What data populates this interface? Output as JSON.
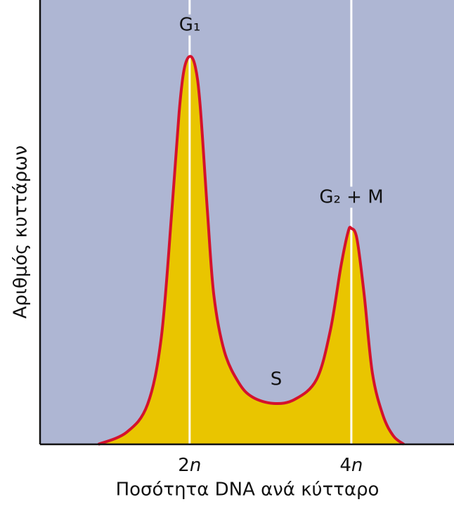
{
  "chart_data": {
    "type": "area",
    "x_label": "Ποσότητα DNA ανά κύτταρο",
    "y_label": "Αριθμός κυττάρων",
    "x": [
      0.87,
      1.22,
      1.48,
      1.65,
      1.78,
      1.87,
      1.93,
      2.0,
      2.07,
      2.13,
      2.22,
      2.3,
      2.43,
      2.61,
      2.78,
      3.04,
      3.3,
      3.57,
      3.74,
      3.87,
      3.96,
      4.0,
      4.07,
      4.16,
      4.26,
      4.39,
      4.52,
      4.65
    ],
    "values": [
      0,
      2.7,
      9.0,
      24.1,
      52.5,
      74.7,
      84.2,
      87.3,
      85.0,
      76.3,
      52.5,
      33.5,
      20.9,
      13.8,
      10.6,
      9.2,
      10.1,
      14.6,
      25.6,
      39.9,
      47.8,
      48.6,
      46.2,
      33.5,
      16.1,
      6.6,
      1.9,
      0
    ],
    "fill_color": "#e9c500",
    "line_color": "#d4122c",
    "background_color": "#aeb6d3",
    "xlim": [
      0.15,
      5.27
    ],
    "ylim": [
      0,
      100
    ],
    "xticks": [
      {
        "value": 2,
        "label": "2n"
      },
      {
        "value": 4,
        "label": "4n"
      }
    ],
    "grid": true,
    "annotations": [
      "G₁",
      "S",
      "G₂ + M"
    ]
  }
}
